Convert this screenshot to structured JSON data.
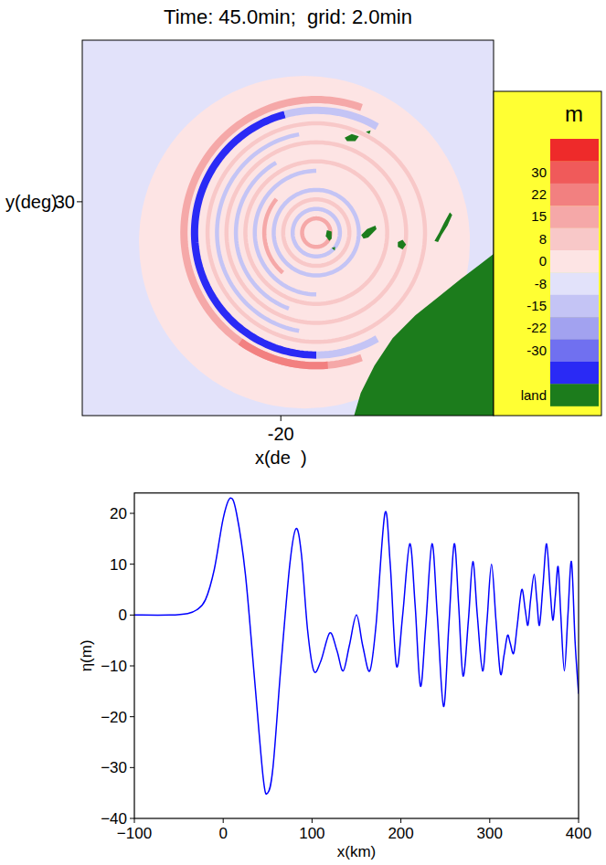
{
  "chart_data": [
    {
      "type": "map",
      "title": "Time: 45.0min;  grid: 2.0min",
      "x_label": "x(de  )",
      "y_label": "y(deg)",
      "xlim": [
        -28.4,
        -11.0
      ],
      "ylim": [
        21.0,
        36.8
      ],
      "xticks": [
        -20
      ],
      "yticks": [
        30
      ],
      "colorbar": {
        "title": "m",
        "ticks": [
          30,
          22,
          15,
          8,
          0,
          -8,
          -15,
          -22,
          -30
        ],
        "colors": [
          "#ee2a2a",
          "#f05a5a",
          "#f28080",
          "#f5a8a8",
          "#f8c8c8",
          "#fde4e4",
          "#e2e2fa",
          "#c4c4f5",
          "#a2a2f0",
          "#7070f0",
          "#2a2af5"
        ],
        "land_label": "land"
      },
      "background": -4,
      "disk": {
        "center": [
          -19.0,
          28.3
        ],
        "r": 7.0,
        "value": 4
      },
      "rings": {
        "center": [
          -18.5,
          28.7
        ],
        "items": [
          {
            "r": 5.6,
            "value": 15,
            "arc": [
              70,
              290
            ]
          },
          {
            "r": 5.6,
            "value": 22,
            "arc": [
              235,
              275
            ]
          },
          {
            "r": 5.15,
            "value": -35,
            "arc": [
              105,
              270
            ]
          },
          {
            "r": 5.15,
            "value": -15,
            "arc": [
              60,
              105
            ]
          },
          {
            "r": 5.15,
            "value": -15,
            "arc": [
              270,
              300
            ]
          },
          {
            "r": 4.6,
            "value": 8,
            "arc": [
              0,
              360
            ]
          },
          {
            "r": 4.2,
            "value": -15,
            "arc": [
              100,
              260
            ]
          },
          {
            "r": 3.8,
            "value": 8,
            "arc": [
              0,
              360
            ]
          },
          {
            "r": 3.4,
            "value": -15,
            "arc": [
              120,
              250
            ]
          },
          {
            "r": 3.0,
            "value": 8,
            "arc": [
              0,
              360
            ]
          },
          {
            "r": 2.6,
            "value": -15,
            "arc": [
              90,
              270
            ]
          },
          {
            "r": 2.2,
            "value": 15,
            "arc": [
              140,
              230
            ]
          },
          {
            "r": 1.8,
            "value": -15,
            "arc": [
              0,
              360
            ]
          },
          {
            "r": 1.4,
            "value": 8,
            "arc": [
              0,
              360
            ]
          },
          {
            "r": 1.0,
            "value": -15,
            "arc": [
              0,
              360
            ]
          },
          {
            "r": 0.6,
            "value": 15,
            "arc": [
              0,
              360
            ]
          }
        ]
      },
      "land": [
        [
          [
            -16.9,
            21.0
          ],
          [
            -16.62,
            21.95
          ],
          [
            -16.04,
            23.1
          ],
          [
            -15.27,
            24.26
          ],
          [
            -14.31,
            25.22
          ],
          [
            -13.34,
            25.99
          ],
          [
            -12.38,
            26.76
          ],
          [
            -11.6,
            27.34
          ],
          [
            -11.0,
            27.8
          ],
          [
            -11.0,
            21.0
          ]
        ],
        [
          [
            -18.05,
            28.8
          ],
          [
            -17.85,
            28.75
          ],
          [
            -17.85,
            28.45
          ],
          [
            -17.95,
            28.35
          ],
          [
            -18.1,
            28.55
          ]
        ],
        [
          [
            -17.85,
            28.05
          ],
          [
            -17.7,
            28.1
          ],
          [
            -17.72,
            27.95
          ]
        ],
        [
          [
            -16.6,
            28.6
          ],
          [
            -16.35,
            28.85
          ],
          [
            -16.0,
            29.0
          ],
          [
            -15.95,
            28.85
          ],
          [
            -16.3,
            28.5
          ],
          [
            -16.5,
            28.45
          ]
        ],
        [
          [
            -15.05,
            28.3
          ],
          [
            -14.85,
            28.4
          ],
          [
            -14.7,
            28.2
          ],
          [
            -14.85,
            28.0
          ],
          [
            -15.05,
            28.1
          ]
        ],
        [
          [
            -13.5,
            28.35
          ],
          [
            -13.3,
            28.7
          ],
          [
            -13.1,
            29.1
          ],
          [
            -12.85,
            29.55
          ],
          [
            -12.75,
            29.45
          ],
          [
            -12.95,
            29.0
          ],
          [
            -13.2,
            28.6
          ],
          [
            -13.35,
            28.3
          ]
        ],
        [
          [
            -17.3,
            32.7
          ],
          [
            -17.0,
            32.85
          ],
          [
            -16.7,
            32.75
          ],
          [
            -16.85,
            32.55
          ],
          [
            -17.2,
            32.55
          ]
        ],
        [
          [
            -16.4,
            32.95
          ],
          [
            -16.2,
            33.0
          ],
          [
            -16.25,
            32.85
          ]
        ]
      ]
    },
    {
      "type": "line",
      "x_label": "x(km)",
      "y_label": "η(m)",
      "xlim": [
        -100,
        400
      ],
      "ylim": [
        -40,
        24
      ],
      "xticks": [
        {
          "value": -100,
          "label": "−100"
        },
        0,
        100,
        200,
        300,
        400
      ],
      "yticks": [
        {
          "value": -40,
          "label": "−40"
        },
        {
          "value": -30,
          "label": "−30"
        },
        {
          "value": -20,
          "label": "−20"
        },
        {
          "value": -10,
          "label": "−10"
        },
        0,
        10,
        20
      ],
      "color": "#0000ff",
      "x": [
        -100,
        -60,
        -40,
        -30,
        -20,
        -10,
        0,
        8,
        15,
        25,
        35,
        45,
        50,
        56,
        65,
        75,
        82,
        88,
        95,
        102,
        110,
        120,
        128,
        135,
        142,
        150,
        157,
        165,
        172,
        182,
        188,
        195,
        202,
        210,
        216,
        222,
        228,
        235,
        241,
        248,
        254,
        260,
        265,
        270,
        276,
        281,
        286,
        292,
        297,
        302,
        307,
        312,
        316,
        320,
        323,
        327,
        331,
        336,
        340,
        343,
        346,
        350,
        353,
        356,
        360,
        364,
        368,
        371,
        374,
        377,
        380,
        384,
        388,
        392,
        396,
        400
      ],
      "values": [
        0,
        0,
        0.3,
        1,
        3,
        9,
        19,
        23,
        20,
        8,
        -12,
        -32,
        -35,
        -30,
        -10,
        10,
        17,
        12,
        -3,
        -11,
        -9,
        -3.5,
        -7,
        -11,
        -6,
        0,
        -6,
        -11,
        -2,
        20,
        10,
        -10,
        0,
        14,
        2,
        -14,
        -2,
        14,
        0,
        -18,
        -2,
        14,
        2,
        -12,
        -1,
        10.5,
        0,
        -11,
        -1,
        10,
        -1,
        -11.5,
        -8,
        -4,
        -5.5,
        -7.5,
        -2,
        5,
        1,
        -2,
        3,
        8,
        3,
        -2,
        6,
        14,
        5,
        -1,
        4,
        9.5,
        0,
        -11,
        0,
        10.5,
        -5,
        -15.5
      ]
    }
  ]
}
